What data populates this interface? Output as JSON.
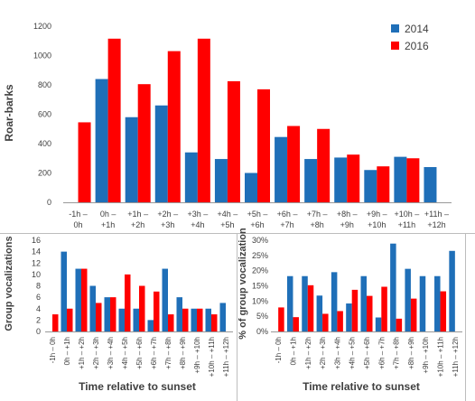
{
  "colors": {
    "series_2014": "#1f6fb8",
    "series_2016": "#ff0000",
    "axis": "#888888",
    "text": "#404040",
    "frame": "#bdbdbd"
  },
  "chart_data": [
    {
      "type": "bar",
      "title": "",
      "xlabel": "",
      "ylabel": "Roar-barks",
      "ylim": [
        0,
        1200
      ],
      "yticks": [
        "0",
        "200",
        "400",
        "600",
        "800",
        "1000",
        "1200"
      ],
      "legend": "top-right",
      "categories": [
        [
          "-1h –",
          "0h"
        ],
        [
          "0h –",
          "+1h"
        ],
        [
          "+1h –",
          "+2h"
        ],
        [
          "+2h –",
          "+3h"
        ],
        [
          "+3h –",
          "+4h"
        ],
        [
          "+4h –",
          "+5h"
        ],
        [
          "+5h –",
          "+6h"
        ],
        [
          "+6h –",
          "+7h"
        ],
        [
          "+7h –",
          "+8h"
        ],
        [
          "+8h –",
          "+9h"
        ],
        [
          "+9h –",
          "+10h"
        ],
        [
          "+10h –",
          "+11h"
        ],
        [
          "+11h –",
          "+12h"
        ]
      ],
      "series": [
        {
          "name": "2014",
          "values": [
            0,
            840,
            580,
            660,
            340,
            295,
            200,
            445,
            295,
            305,
            220,
            310,
            240
          ]
        },
        {
          "name": "2016",
          "values": [
            545,
            1115,
            805,
            1030,
            1115,
            825,
            770,
            520,
            500,
            325,
            245,
            300,
            0
          ]
        }
      ]
    },
    {
      "type": "bar",
      "title": "",
      "xlabel": "Time relative to sunset",
      "ylabel": "Group vocalizations",
      "ylim": [
        0,
        16
      ],
      "yticks": [
        "0",
        "2",
        "4",
        "6",
        "8",
        "10",
        "12",
        "14",
        "16"
      ],
      "categories": [
        "-1h – 0h",
        "0h – +1h",
        "+1h – +2h",
        "+2h – +3h",
        "+3h – +4h",
        "+4h – +5h",
        "+5h – +6h",
        "+6h – +7h",
        "+7h – +8h",
        "+8h – +9h",
        "+9h – +10h",
        "+10h – +11h",
        "+11h – +12h"
      ],
      "series": [
        {
          "name": "2014",
          "values": [
            0,
            14,
            11,
            8,
            6,
            4,
            4,
            2,
            11,
            6,
            4,
            4,
            5
          ]
        },
        {
          "name": "2016",
          "values": [
            3,
            4,
            11,
            5,
            6,
            10,
            8,
            7,
            3,
            4,
            4,
            3,
            0
          ]
        }
      ]
    },
    {
      "type": "bar",
      "title": "",
      "xlabel": "Time relative to sunset",
      "ylabel": "% of group vocalization",
      "ylim": [
        0,
        30
      ],
      "yticks": [
        "0%",
        "5%",
        "10%",
        "15%",
        "20%",
        "25%",
        "30%"
      ],
      "categories": [
        "-1h – 0h",
        "0h – +1h",
        "+1h – +2h",
        "+2h – +3h",
        "+3h – +4h",
        "+4h – +5h",
        "+5h – +6h",
        "+6h – +7h",
        "+7h – +8h",
        "+8h – +9h",
        "+9h – +10h",
        "+10h – +11h",
        "+11h – +12h"
      ],
      "series": [
        {
          "name": "2014",
          "values": [
            0,
            18.2,
            18.2,
            11.8,
            19.5,
            9.2,
            18.2,
            4.6,
            28.9,
            20.6,
            18.2,
            18.2,
            26.5
          ]
        },
        {
          "name": "2016",
          "values": [
            7.9,
            4.7,
            15.2,
            5.8,
            6.7,
            13.7,
            11.7,
            14.7,
            4.2,
            10.8,
            0,
            13.2,
            0
          ]
        }
      ]
    }
  ]
}
